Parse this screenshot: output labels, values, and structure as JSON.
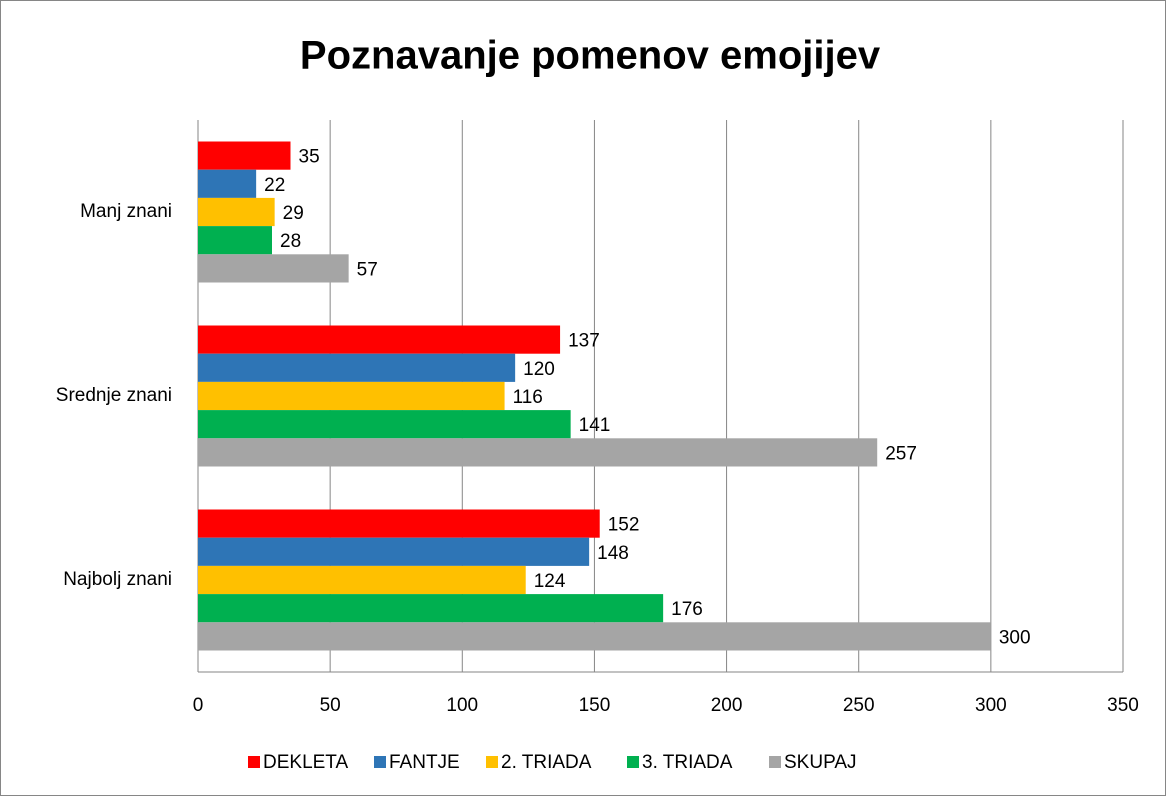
{
  "chart_data": {
    "type": "bar",
    "orientation": "horizontal",
    "title": "Poznavanje pomenov emojijev",
    "categories": [
      "Manj znani",
      "Srednje znani",
      "Najbolj znani"
    ],
    "series": [
      {
        "name": "DEKLETA",
        "color": "#ff0000",
        "values": [
          35,
          137,
          152
        ]
      },
      {
        "name": "FANTJE",
        "color": "#2e75b6",
        "values": [
          22,
          120,
          148
        ]
      },
      {
        "name": "2. TRIADA",
        "color": "#ffc000",
        "values": [
          29,
          116,
          124
        ]
      },
      {
        "name": "3. TRIADA",
        "color": "#00b050",
        "values": [
          28,
          141,
          176
        ]
      },
      {
        "name": "SKUPAJ",
        "color": "#a5a5a5",
        "values": [
          57,
          257,
          300
        ]
      }
    ],
    "xlim": [
      0,
      350
    ],
    "xticks": [
      0,
      50,
      100,
      150,
      200,
      250,
      300,
      350
    ],
    "grid": true,
    "legend": "bottom"
  }
}
